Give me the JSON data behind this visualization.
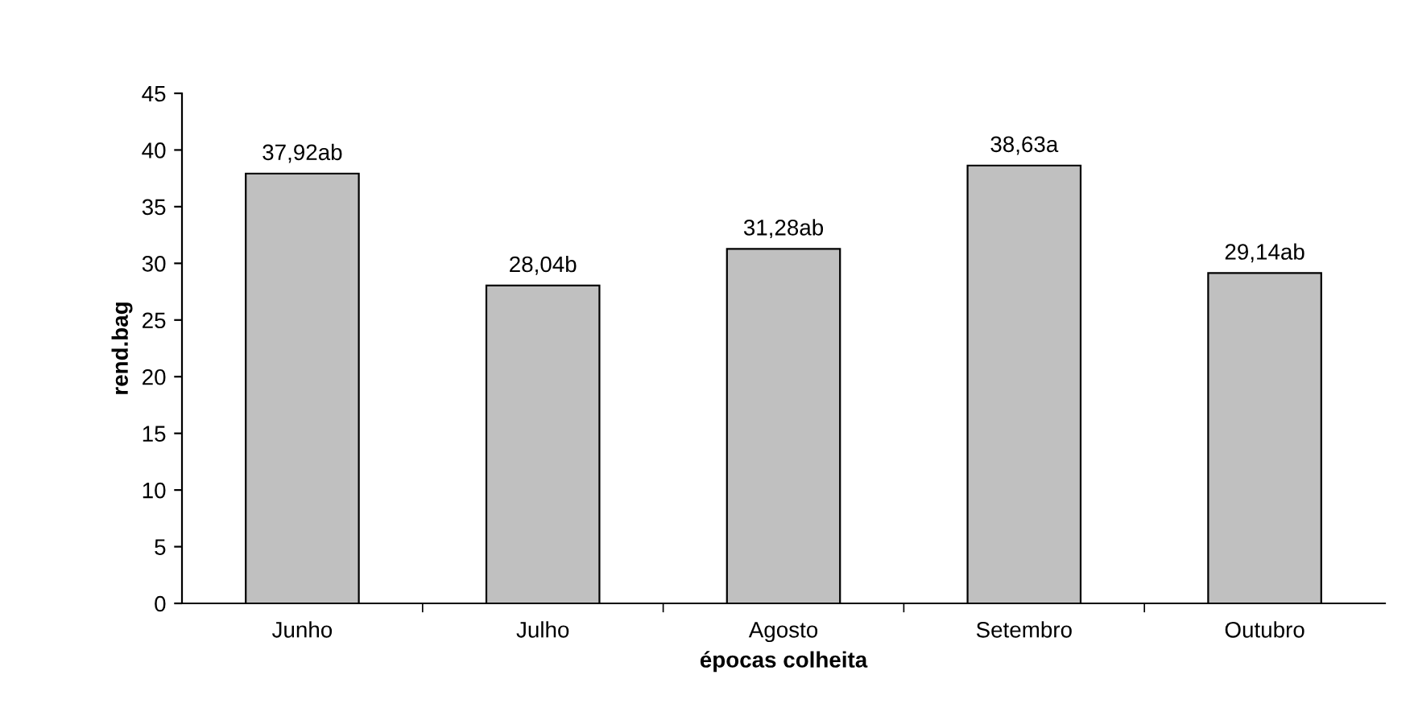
{
  "chart_data": {
    "type": "bar",
    "xlabel": "épocas colheita",
    "ylabel": "rend.bag",
    "categories": [
      "Junho",
      "Julho",
      "Agosto",
      "Setembro",
      "Outubro"
    ],
    "values": [
      37.92,
      28.04,
      31.28,
      38.63,
      29.14
    ],
    "value_labels": [
      "37,92ab",
      "28,04b",
      "31,28ab",
      "38,63a",
      "29,14ab"
    ],
    "color": "#c0c0c0",
    "ylim": [
      0,
      45
    ],
    "yticks": [
      0,
      5,
      10,
      15,
      20,
      25,
      30,
      35,
      40,
      45
    ],
    "grid": false,
    "legend": false
  }
}
